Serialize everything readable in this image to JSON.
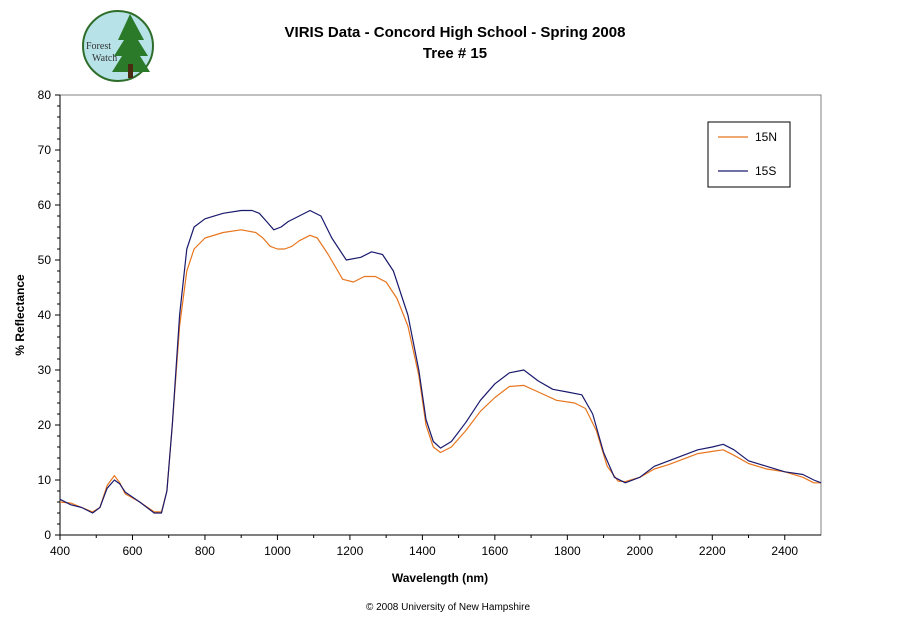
{
  "chart_data": {
    "type": "line",
    "title": "VIRIS Data - Concord High School - Spring 2008",
    "subtitle": "Tree # 15",
    "xlabel": "Wavelength (nm)",
    "ylabel": "% Reflectance",
    "xlim": [
      400,
      2500
    ],
    "ylim": [
      0,
      80
    ],
    "xticks": [
      "400",
      "600",
      "800",
      "1000",
      "1200",
      "1400",
      "1600",
      "1800",
      "2000",
      "2200",
      "2400"
    ],
    "yticks": [
      "0",
      "10",
      "20",
      "30",
      "40",
      "50",
      "60",
      "70",
      "80"
    ],
    "grid": false,
    "legend_position": "top-right",
    "series": [
      {
        "name": "15N",
        "color": "#e8761f",
        "points": [
          [
            400,
            6
          ],
          [
            430,
            5.8
          ],
          [
            460,
            5
          ],
          [
            490,
            4.2
          ],
          [
            510,
            5
          ],
          [
            530,
            9
          ],
          [
            550,
            10.8
          ],
          [
            565,
            9.5
          ],
          [
            580,
            7.5
          ],
          [
            620,
            6
          ],
          [
            660,
            4.2
          ],
          [
            680,
            4.2
          ],
          [
            695,
            8
          ],
          [
            710,
            20
          ],
          [
            730,
            38
          ],
          [
            750,
            48
          ],
          [
            770,
            52
          ],
          [
            800,
            54
          ],
          [
            850,
            55
          ],
          [
            900,
            55.5
          ],
          [
            940,
            55
          ],
          [
            960,
            54
          ],
          [
            980,
            52.5
          ],
          [
            1000,
            52
          ],
          [
            1020,
            52
          ],
          [
            1040,
            52.5
          ],
          [
            1060,
            53.5
          ],
          [
            1090,
            54.5
          ],
          [
            1110,
            54
          ],
          [
            1140,
            51
          ],
          [
            1180,
            46.5
          ],
          [
            1210,
            46
          ],
          [
            1240,
            47
          ],
          [
            1270,
            47
          ],
          [
            1300,
            46
          ],
          [
            1330,
            43
          ],
          [
            1360,
            38
          ],
          [
            1390,
            29
          ],
          [
            1410,
            20
          ],
          [
            1430,
            16
          ],
          [
            1450,
            15
          ],
          [
            1480,
            16
          ],
          [
            1520,
            19
          ],
          [
            1560,
            22.5
          ],
          [
            1600,
            25
          ],
          [
            1640,
            27
          ],
          [
            1680,
            27.2
          ],
          [
            1720,
            26
          ],
          [
            1770,
            24.5
          ],
          [
            1820,
            24
          ],
          [
            1850,
            23
          ],
          [
            1880,
            19
          ],
          [
            1910,
            12.5
          ],
          [
            1940,
            9.8
          ],
          [
            1960,
            9.7
          ],
          [
            2000,
            10.5
          ],
          [
            2040,
            12
          ],
          [
            2080,
            12.8
          ],
          [
            2120,
            13.8
          ],
          [
            2160,
            14.8
          ],
          [
            2200,
            15.2
          ],
          [
            2230,
            15.5
          ],
          [
            2260,
            14.5
          ],
          [
            2300,
            13
          ],
          [
            2350,
            12
          ],
          [
            2400,
            11.5
          ],
          [
            2450,
            10.5
          ],
          [
            2480,
            9.5
          ],
          [
            2500,
            9.5
          ]
        ]
      },
      {
        "name": "15S",
        "color": "#1a1a6e",
        "points": [
          [
            400,
            6.5
          ],
          [
            430,
            5.5
          ],
          [
            460,
            5
          ],
          [
            490,
            4
          ],
          [
            510,
            5
          ],
          [
            530,
            8.5
          ],
          [
            550,
            10
          ],
          [
            565,
            9.3
          ],
          [
            580,
            7.8
          ],
          [
            620,
            6
          ],
          [
            660,
            4
          ],
          [
            680,
            4
          ],
          [
            695,
            8
          ],
          [
            710,
            20
          ],
          [
            730,
            40
          ],
          [
            750,
            52
          ],
          [
            770,
            56
          ],
          [
            800,
            57.5
          ],
          [
            850,
            58.5
          ],
          [
            900,
            59
          ],
          [
            930,
            59
          ],
          [
            950,
            58.5
          ],
          [
            970,
            57
          ],
          [
            990,
            55.5
          ],
          [
            1010,
            56
          ],
          [
            1030,
            57
          ],
          [
            1060,
            58
          ],
          [
            1090,
            59
          ],
          [
            1120,
            58
          ],
          [
            1150,
            54
          ],
          [
            1190,
            50
          ],
          [
            1230,
            50.5
          ],
          [
            1260,
            51.5
          ],
          [
            1290,
            51
          ],
          [
            1320,
            48
          ],
          [
            1360,
            40
          ],
          [
            1390,
            30
          ],
          [
            1410,
            21
          ],
          [
            1430,
            17
          ],
          [
            1450,
            15.8
          ],
          [
            1480,
            17
          ],
          [
            1520,
            20.5
          ],
          [
            1560,
            24.5
          ],
          [
            1600,
            27.5
          ],
          [
            1640,
            29.5
          ],
          [
            1680,
            30
          ],
          [
            1720,
            28
          ],
          [
            1760,
            26.5
          ],
          [
            1800,
            26
          ],
          [
            1840,
            25.5
          ],
          [
            1870,
            22
          ],
          [
            1900,
            15
          ],
          [
            1930,
            10.5
          ],
          [
            1960,
            9.5
          ],
          [
            2000,
            10.5
          ],
          [
            2040,
            12.5
          ],
          [
            2080,
            13.5
          ],
          [
            2120,
            14.5
          ],
          [
            2160,
            15.5
          ],
          [
            2200,
            16
          ],
          [
            2230,
            16.5
          ],
          [
            2260,
            15.5
          ],
          [
            2300,
            13.5
          ],
          [
            2350,
            12.5
          ],
          [
            2400,
            11.5
          ],
          [
            2450,
            11
          ],
          [
            2480,
            10
          ],
          [
            2500,
            9.5
          ]
        ]
      }
    ]
  },
  "logo": {
    "text_line1": "Forest",
    "text_line2": "Watch"
  },
  "copyright": "© 2008 University of New Hampshire"
}
